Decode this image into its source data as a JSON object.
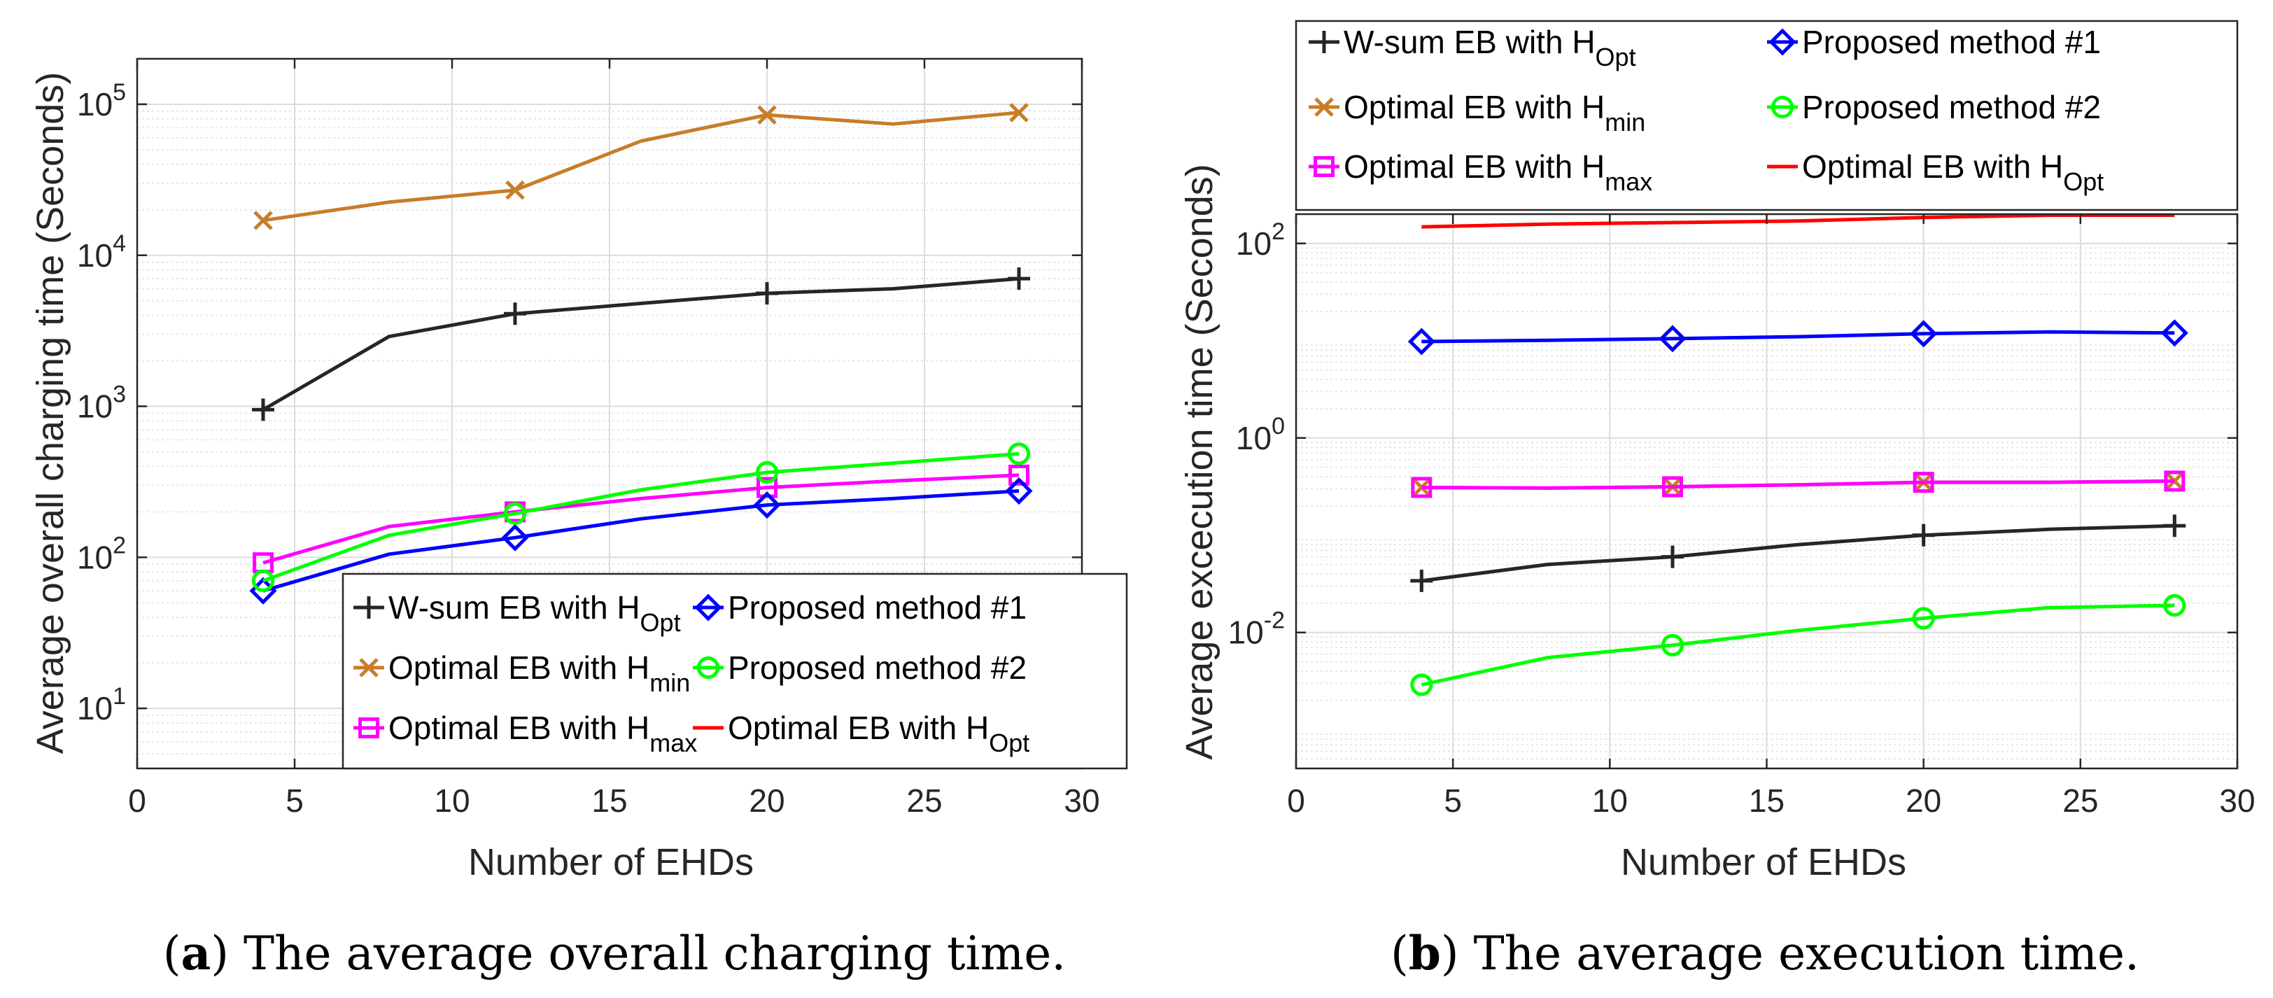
{
  "figure": {
    "captions": [
      {
        "label": "a",
        "text": " The average overall charging time."
      },
      {
        "label": "b",
        "text": " The average execution time."
      }
    ]
  },
  "chart_data": [
    {
      "type": "line",
      "id": "a",
      "yscale": "log",
      "xlabel": "Number of EHDs",
      "ylabel": "Average overall charging time (Seconds)",
      "xlim": [
        0,
        30
      ],
      "ylim": [
        4,
        200000
      ],
      "xticks": [
        0,
        5,
        10,
        15,
        20,
        25,
        30
      ],
      "yticks": [
        {
          "base": "10",
          "exp": "1",
          "value": 10
        },
        {
          "base": "10",
          "exp": "2",
          "value": 100
        },
        {
          "base": "10",
          "exp": "3",
          "value": 1000
        },
        {
          "base": "10",
          "exp": "4",
          "value": 10000
        },
        {
          "base": "10",
          "exp": "5",
          "value": 100000
        }
      ],
      "grid": true,
      "legend_position": "bottom-right",
      "series": [
        {
          "name": "W-sum EB with ",
          "sub": "Opt",
          "color": "#262626",
          "marker": "plus",
          "x": [
            4,
            8,
            12,
            16,
            20,
            24,
            28
          ],
          "y": [
            950,
            2900,
            4100,
            4800,
            5600,
            6000,
            7000
          ],
          "markers_at": [
            4,
            12,
            20,
            28
          ]
        },
        {
          "name": "Optimal EB with ",
          "sub": "min",
          "color": "#c87d28",
          "marker": "cross",
          "x": [
            4,
            8,
            12,
            16,
            20,
            24,
            28
          ],
          "y": [
            17000,
            22500,
            27000,
            57000,
            85000,
            74000,
            88000
          ],
          "markers_at": [
            4,
            12,
            20,
            28
          ]
        },
        {
          "name": "Optimal EB with ",
          "sub": "max",
          "color": "#ff00ff",
          "marker": "square",
          "x": [
            4,
            8,
            12,
            16,
            20,
            24,
            28
          ],
          "y": [
            92,
            160,
            200,
            245,
            290,
            320,
            350
          ],
          "markers_at": [
            4,
            12,
            20,
            28
          ]
        },
        {
          "name": "Proposed method #1",
          "sub": "",
          "color": "#0000ff",
          "marker": "diamond",
          "x": [
            4,
            8,
            12,
            16,
            20,
            24,
            28
          ],
          "y": [
            60,
            105,
            135,
            180,
            222,
            245,
            275
          ],
          "markers_at": [
            4,
            12,
            20,
            28
          ]
        },
        {
          "name": "Proposed method #2",
          "sub": "",
          "color": "#00ff00",
          "marker": "circle",
          "x": [
            4,
            8,
            12,
            16,
            20,
            24,
            28
          ],
          "y": [
            70,
            140,
            195,
            280,
            365,
            420,
            485
          ],
          "markers_at": [
            4,
            12,
            20,
            28
          ]
        },
        {
          "name": "Optimal EB with ",
          "sub": "Opt",
          "color": "#ff0000",
          "marker": "none",
          "x": [],
          "y": [],
          "markers_at": []
        }
      ]
    },
    {
      "type": "line",
      "id": "b",
      "yscale": "log",
      "xlabel": "Number of EHDs",
      "ylabel": "Average excecution time (Seconds)",
      "xlim": [
        0,
        30
      ],
      "ylim": [
        0.0004,
        200
      ],
      "xticks": [
        0,
        5,
        10,
        15,
        20,
        25,
        30
      ],
      "yticks": [
        {
          "base": "10",
          "exp": "-2",
          "value": 0.01
        },
        {
          "base": "10",
          "exp": "0",
          "value": 1
        },
        {
          "base": "10",
          "exp": "2",
          "value": 100
        }
      ],
      "grid": true,
      "legend_position": "top",
      "series": [
        {
          "name": "W-sum EB with ",
          "sub": "Opt",
          "color": "#262626",
          "marker": "plus",
          "x": [
            4,
            8,
            12,
            16,
            20,
            24,
            28
          ],
          "y": [
            0.034,
            0.05,
            0.06,
            0.08,
            0.1,
            0.115,
            0.125
          ],
          "markers_at": [
            4,
            12,
            20,
            28
          ]
        },
        {
          "name": "Optimal EB with ",
          "sub": "min",
          "color": "#c87d28",
          "marker": "cross",
          "x": [
            4,
            8,
            12,
            16,
            20,
            24,
            28
          ],
          "y": [
            0.31,
            0.305,
            0.315,
            0.33,
            0.35,
            0.35,
            0.36
          ],
          "markers_at": [
            4,
            12,
            20,
            28
          ]
        },
        {
          "name": "Optimal EB with ",
          "sub": "max",
          "color": "#ff00ff",
          "marker": "square",
          "x": [
            4,
            8,
            12,
            16,
            20,
            24,
            28
          ],
          "y": [
            0.31,
            0.305,
            0.315,
            0.33,
            0.35,
            0.35,
            0.36
          ],
          "markers_at": [
            4,
            12,
            20,
            28
          ]
        },
        {
          "name": "Proposed method #1",
          "sub": "",
          "color": "#0000ff",
          "marker": "diamond",
          "x": [
            4,
            8,
            12,
            16,
            20,
            24,
            28
          ],
          "y": [
            9.8,
            10.1,
            10.5,
            11.0,
            11.8,
            12.3,
            12.0
          ],
          "markers_at": [
            4,
            12,
            20,
            28
          ]
        },
        {
          "name": "Proposed method #2",
          "sub": "",
          "color": "#00ff00",
          "marker": "circle",
          "x": [
            4,
            8,
            12,
            16,
            20,
            24,
            28
          ],
          "y": [
            0.0029,
            0.0055,
            0.0074,
            0.0105,
            0.014,
            0.018,
            0.019
          ],
          "markers_at": [
            4,
            12,
            20,
            28
          ]
        },
        {
          "name": "Optimal EB with ",
          "sub": "Opt",
          "color": "#ff0000",
          "marker": "none",
          "x": [
            4,
            8,
            12,
            16,
            20,
            24,
            28
          ],
          "y": [
            148,
            158,
            164,
            170,
            185,
            195,
            195
          ],
          "markers_at": []
        }
      ]
    }
  ]
}
